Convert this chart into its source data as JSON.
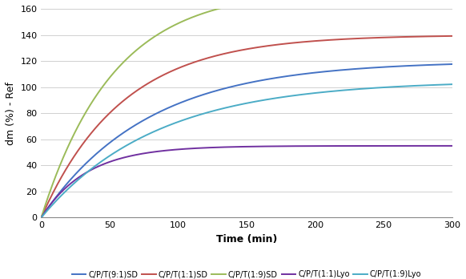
{
  "title": "",
  "xlabel": "Time (min)",
  "ylabel": "dm (%) - Ref",
  "xlim": [
    0,
    300
  ],
  "ylim": [
    0,
    155
  ],
  "yticks": [
    0,
    20,
    40,
    60,
    80,
    100,
    120,
    140,
    160
  ],
  "xticks": [
    0,
    50,
    100,
    150,
    200,
    250,
    300
  ],
  "series": [
    {
      "label": "C/P/T(9:1)SD",
      "color": "#4472C4",
      "A": 120,
      "k": 0.013
    },
    {
      "label": "C/P/T(1:1)SD",
      "color": "#C0504D",
      "A": 140,
      "k": 0.017
    },
    {
      "label": "C/P/T(1:9)SD",
      "color": "#9BBB59",
      "A": 175,
      "k": 0.019
    },
    {
      "label": "C/P/T(1:1)Lyo",
      "color": "#7030A0",
      "A": 55,
      "k": 0.03
    },
    {
      "label": "C/P/T(1:9)Lyo",
      "color": "#4BACC6",
      "A": 105,
      "k": 0.012
    }
  ],
  "background_color": "#FFFFFF",
  "grid_color": "#D0D0D0"
}
